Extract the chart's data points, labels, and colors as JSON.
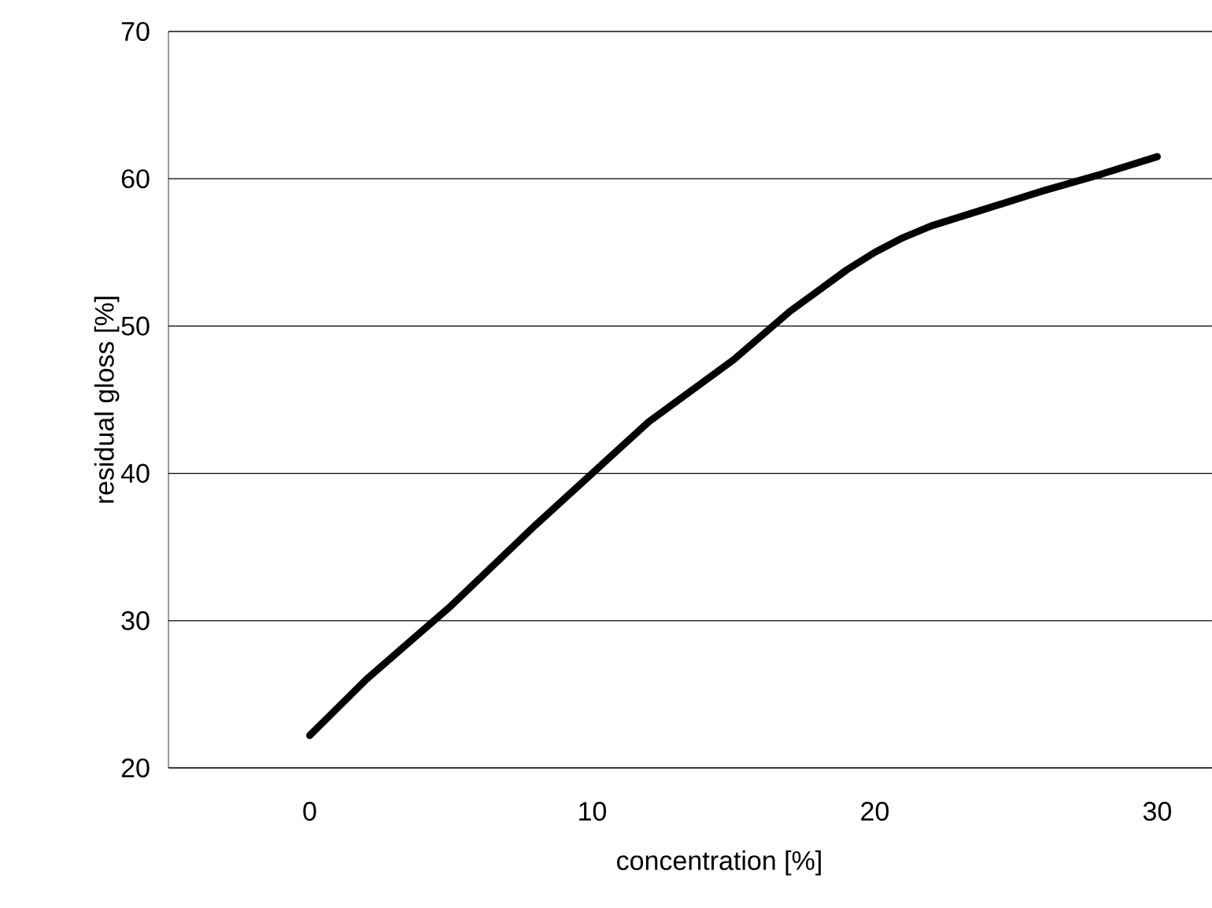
{
  "chart_data": {
    "type": "line",
    "xlabel": "concentration [%]",
    "ylabel": "residual gloss [%]",
    "x": [
      0,
      2,
      5,
      8,
      10,
      12,
      15,
      17,
      19,
      20,
      21,
      22,
      24,
      26,
      28,
      30
    ],
    "series": [
      {
        "color": "#000000",
        "values": [
          22.2,
          26,
          31,
          36.5,
          40,
          43.5,
          47.7,
          51,
          53.8,
          55,
          56,
          56.8,
          58,
          59.2,
          60.3,
          61.5
        ]
      }
    ],
    "xlim": [
      -5,
      34
    ],
    "ylim": [
      20,
      70
    ],
    "xticks": [
      0,
      10,
      20,
      30
    ],
    "yticks": [
      20,
      30,
      40,
      50,
      60,
      70
    ],
    "grid": "y",
    "marker": "none",
    "line_style": "solid"
  }
}
